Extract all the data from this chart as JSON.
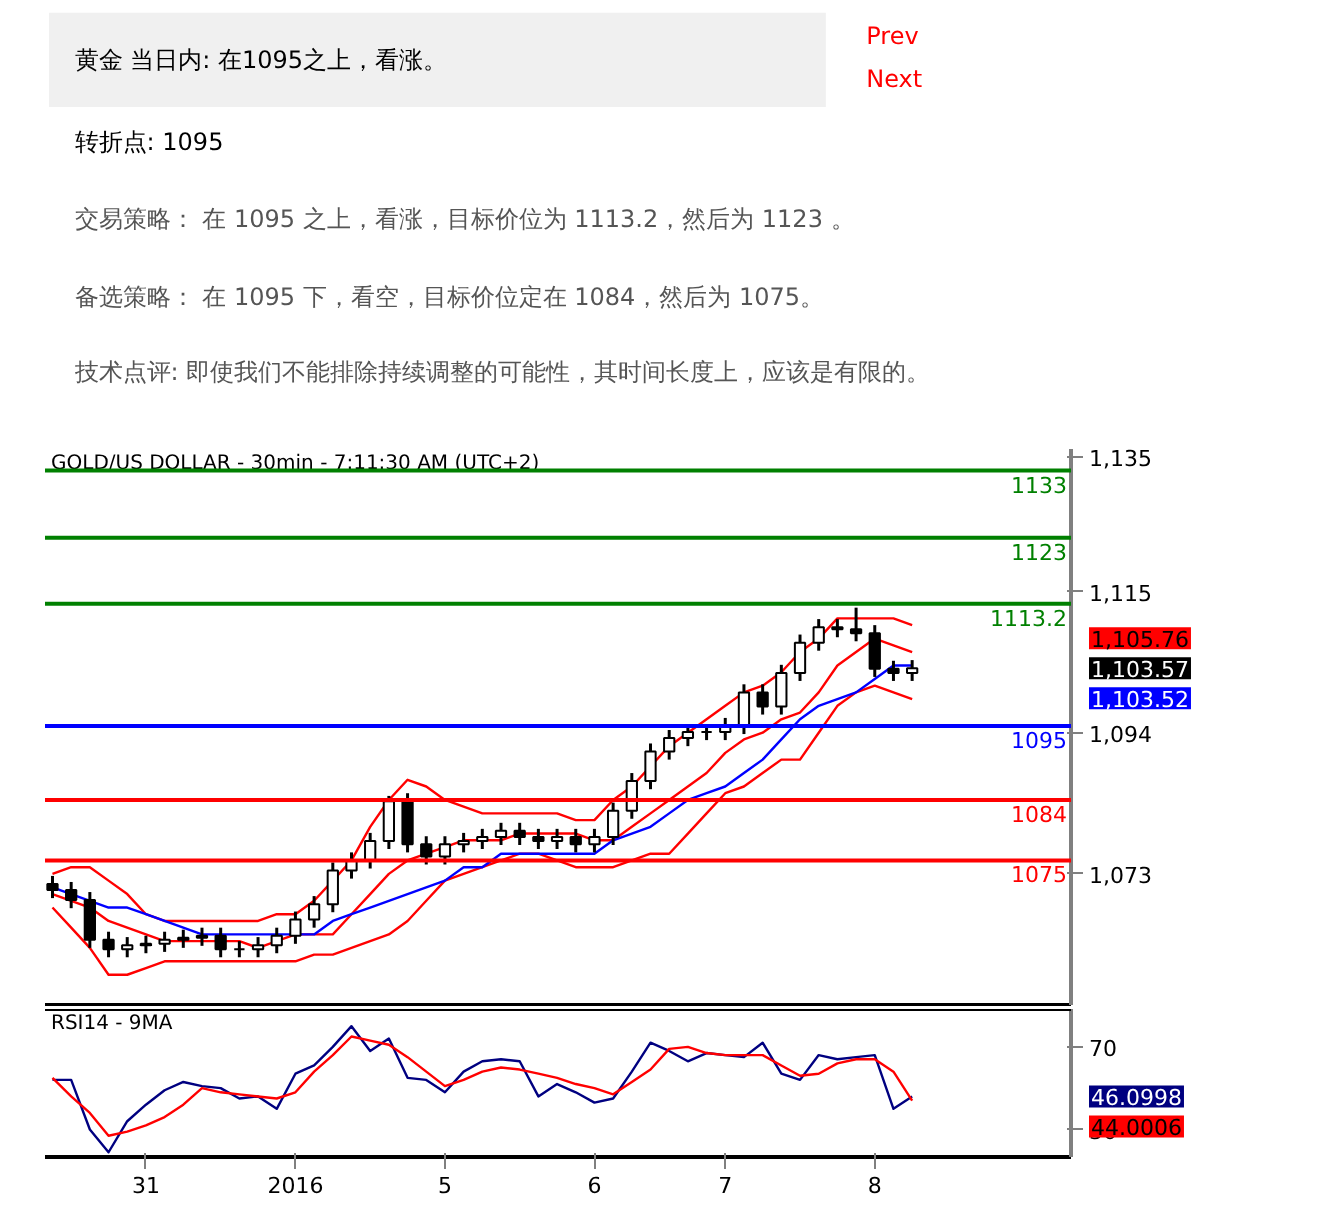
{
  "chart_data": [
    {
      "type": "other",
      "title": "黄金 当日内: 在1095之上，看涨。",
      "annotations": [
        "转折点: 1095",
        "交易策略： 在 1095 之上，看涨，目标价位为 1113.2，然后为 1123 。",
        "备选策略： 在 1095 下，看空，目标价位定在 1084，然后为 1075。",
        "技术点评: 即使我们不能排除持续调整的可能性，其时间长度上，应该是有限的。",
        "Prev",
        "Next"
      ]
    },
    {
      "type": "candlestick",
      "title": "GOLD/US DOLLAR - 30min - 7:11:30 AM (UTC+2)",
      "categories": [
        null,
        null,
        null,
        null,
        null,
        null,
        null,
        null,
        null,
        null,
        null,
        null,
        null,
        null,
        null,
        null,
        null,
        null,
        null,
        null,
        null,
        null,
        null,
        null,
        null,
        null,
        null,
        null,
        null,
        null,
        null,
        null,
        null,
        null,
        null,
        null,
        null,
        null,
        null,
        null,
        null,
        null,
        null,
        null,
        null,
        null,
        null
      ],
      "ohlc": [
        [
          1071.5,
          1072.7,
          1069.4,
          1070.6
        ],
        [
          1070.6,
          1071.8,
          1067.9,
          1069.1
        ],
        [
          1069.1,
          1070.3,
          1062.0,
          1063.2
        ],
        [
          1063.2,
          1064.4,
          1060.6,
          1061.8
        ],
        [
          1061.8,
          1063.6,
          1060.6,
          1062.4
        ],
        [
          1062.4,
          1063.8,
          1061.2,
          1062.6
        ],
        [
          1062.6,
          1064.4,
          1061.4,
          1063.2
        ],
        [
          1063.2,
          1064.7,
          1062.0,
          1063.5
        ],
        [
          1063.5,
          1065.0,
          1062.3,
          1063.8
        ],
        [
          1063.8,
          1065.0,
          1060.6,
          1061.8
        ],
        [
          1061.8,
          1063.0,
          1060.6,
          1061.8
        ],
        [
          1061.8,
          1063.6,
          1060.6,
          1062.4
        ],
        [
          1062.4,
          1065.0,
          1061.2,
          1063.8
        ],
        [
          1063.8,
          1067.4,
          1062.6,
          1066.2
        ],
        [
          1066.2,
          1069.7,
          1065.0,
          1068.5
        ],
        [
          1068.5,
          1074.7,
          1067.3,
          1073.5
        ],
        [
          1073.5,
          1076.2,
          1072.3,
          1075.0
        ],
        [
          1075.0,
          1079.1,
          1073.8,
          1077.9
        ],
        [
          1077.9,
          1084.6,
          1076.7,
          1083.8
        ],
        [
          1083.8,
          1085.0,
          1076.2,
          1077.4
        ],
        [
          1077.4,
          1078.6,
          1074.4,
          1075.6
        ],
        [
          1075.6,
          1078.6,
          1074.4,
          1077.4
        ],
        [
          1077.4,
          1079.1,
          1076.2,
          1077.9
        ],
        [
          1077.9,
          1079.7,
          1076.7,
          1078.5
        ],
        [
          1078.5,
          1080.6,
          1077.3,
          1079.4
        ],
        [
          1079.4,
          1080.6,
          1077.3,
          1078.5
        ],
        [
          1078.5,
          1079.7,
          1076.7,
          1077.9
        ],
        [
          1077.9,
          1079.7,
          1076.7,
          1078.5
        ],
        [
          1078.5,
          1079.7,
          1076.2,
          1077.4
        ],
        [
          1077.4,
          1079.7,
          1076.2,
          1078.5
        ],
        [
          1078.5,
          1083.6,
          1077.3,
          1082.4
        ],
        [
          1082.4,
          1088.0,
          1081.2,
          1086.8
        ],
        [
          1086.8,
          1092.4,
          1085.6,
          1091.2
        ],
        [
          1091.2,
          1094.4,
          1090.0,
          1093.2
        ],
        [
          1093.2,
          1095.3,
          1092.0,
          1094.1
        ],
        [
          1094.1,
          1095.3,
          1092.9,
          1094.1
        ],
        [
          1094.1,
          1096.2,
          1092.9,
          1095.0
        ],
        [
          1095.0,
          1101.2,
          1093.8,
          1100.0
        ],
        [
          1100.0,
          1101.2,
          1096.7,
          1097.9
        ],
        [
          1097.9,
          1104.1,
          1096.7,
          1102.9
        ],
        [
          1102.9,
          1108.6,
          1101.7,
          1107.4
        ],
        [
          1107.4,
          1110.9,
          1106.2,
          1109.7
        ],
        [
          1109.7,
          1110.9,
          1108.2,
          1109.4
        ],
        [
          1109.4,
          1112.6,
          1107.6,
          1108.8
        ],
        [
          1108.8,
          1110.0,
          1102.3,
          1103.5
        ],
        [
          1103.5,
          1104.7,
          1101.7,
          1102.9
        ],
        [
          1102.9,
          1104.8,
          1101.7,
          1103.6
        ]
      ],
      "series": [
        {
          "type": "line",
          "color": "#ff0000",
          "values": [
            1073,
            1074,
            1074,
            1072,
            1070,
            1067,
            1066,
            1066,
            1066,
            1066,
            1066,
            1066,
            1067,
            1067,
            1069,
            1072,
            1075,
            1080,
            1084,
            1087,
            1086,
            1084,
            1083,
            1082,
            1082,
            1082,
            1082,
            1082,
            1081,
            1081,
            1084,
            1086,
            1089,
            1092,
            1094,
            1096,
            1098,
            1100,
            1101,
            1103,
            1106,
            1108,
            1111,
            1111,
            1111,
            1111,
            1110
          ]
        },
        {
          "type": "line",
          "color": "#ff0000",
          "values": [
            1070,
            1069,
            1068,
            1066,
            1065,
            1064,
            1063,
            1063,
            1063,
            1063,
            1063,
            1062,
            1063,
            1064,
            1064,
            1064,
            1067,
            1070,
            1073,
            1075,
            1076,
            1077,
            1078,
            1078,
            1078,
            1079,
            1079,
            1079,
            1079,
            1078,
            1078,
            1080,
            1082,
            1084,
            1086,
            1088,
            1091,
            1093,
            1094,
            1096,
            1097,
            1100,
            1104,
            1106,
            1108,
            1107,
            1106
          ]
        },
        {
          "type": "line",
          "color": "#ff0000",
          "values": [
            1068,
            1065,
            1062,
            1058,
            1058,
            1059,
            1060,
            1060,
            1060,
            1060,
            1060,
            1060,
            1060,
            1060,
            1061,
            1061,
            1062,
            1063,
            1064,
            1066,
            1069,
            1072,
            1073,
            1074,
            1075,
            1076,
            1076,
            1075,
            1074,
            1074,
            1074,
            1075,
            1076,
            1076,
            1079,
            1082,
            1085,
            1086,
            1088,
            1090,
            1090,
            1094,
            1098,
            1100,
            1101,
            1100,
            1099
          ]
        },
        {
          "type": "line",
          "color": "#0000ff",
          "values": [
            1071,
            1070,
            1069,
            1068,
            1068,
            1067,
            1066,
            1065,
            1064,
            1064,
            1064,
            1064,
            1064,
            1064,
            1064,
            1066,
            1067,
            1068,
            1069,
            1070,
            1071,
            1072,
            1074,
            1074,
            1076,
            1076,
            1076,
            1076,
            1076,
            1076,
            1078,
            1079,
            1080,
            1082,
            1084,
            1085,
            1086,
            1088,
            1090,
            1093,
            1096,
            1098,
            1099,
            1100,
            1102,
            1104,
            1104
          ]
        }
      ],
      "ref_lines": [
        {
          "axis": "y",
          "value": 1133,
          "label": "1133",
          "color": "#008000"
        },
        {
          "axis": "y",
          "value": 1123,
          "label": "1123",
          "color": "#008000"
        },
        {
          "axis": "y",
          "value": 1113.2,
          "label": "1113.2",
          "color": "#008000"
        },
        {
          "axis": "y",
          "value": 1095,
          "label": "1095",
          "color": "#0000ff"
        },
        {
          "axis": "y",
          "value": 1084,
          "label": "1084",
          "color": "#ff0000"
        },
        {
          "axis": "y",
          "value": 1075,
          "label": "1075",
          "color": "#ff0000"
        }
      ],
      "annotations": [
        "1,105.76",
        "1,103.57",
        "1,103.52"
      ],
      "ylim": [
        1053.5,
        1136.2
      ],
      "yticks": [
        {
          "value": 1135,
          "label": "1,135"
        },
        {
          "value": 1115,
          "label": "1,115"
        },
        {
          "value": 1094,
          "label": "1,094"
        },
        {
          "value": 1073,
          "label": "1,073"
        }
      ],
      "tick_labels": "y"
    },
    {
      "type": "line",
      "title": "RSI14 - 9MA",
      "categories": [
        null,
        null,
        null,
        null,
        null,
        "31",
        null,
        null,
        null,
        null,
        null,
        null,
        null,
        "2016",
        null,
        null,
        null,
        null,
        null,
        null,
        null,
        "5",
        null,
        null,
        null,
        null,
        null,
        null,
        null,
        "6",
        null,
        null,
        null,
        null,
        null,
        null,
        "7",
        null,
        null,
        null,
        null,
        null,
        null,
        null,
        "8",
        null,
        null
      ],
      "series": [
        {
          "color": "#000080",
          "values": [
            54,
            54,
            30,
            19,
            34,
            42,
            49,
            53,
            51,
            50,
            45,
            46,
            40,
            57,
            61,
            70,
            80,
            68,
            74,
            55,
            54,
            48,
            58,
            63,
            64,
            63,
            46,
            52,
            48,
            43,
            45,
            58,
            72,
            68,
            63,
            67,
            66,
            65,
            72,
            57,
            54,
            66,
            64,
            65,
            66,
            40,
            46
          ]
        },
        {
          "color": "#ff0000",
          "values": [
            55,
            46,
            38,
            27,
            29,
            32,
            36,
            42,
            50,
            48,
            47,
            46,
            45,
            48,
            58,
            66,
            75,
            73,
            71,
            65,
            58,
            51,
            54,
            58,
            60,
            59,
            57,
            55,
            52,
            50,
            47,
            53,
            59,
            69,
            70,
            67,
            66,
            66,
            66,
            61,
            56,
            57,
            62,
            64,
            64,
            58,
            44
          ]
        }
      ],
      "annotations": [
        "46.0998",
        "44.0006"
      ],
      "ylim": [
        16.7,
        88.3
      ],
      "yticks": [
        70,
        30
      ]
    }
  ]
}
